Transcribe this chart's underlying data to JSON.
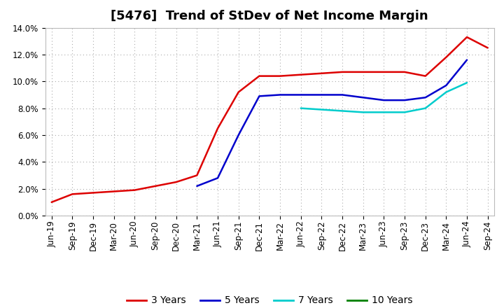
{
  "title": "[5476]  Trend of StDev of Net Income Margin",
  "background_color": "#ffffff",
  "plot_background_color": "#ffffff",
  "grid_color": "#aaaaaa",
  "ylim": [
    0,
    0.14
  ],
  "yticks": [
    0.0,
    0.02,
    0.04,
    0.06,
    0.08,
    0.1,
    0.12,
    0.14
  ],
  "x_labels": [
    "Jun-19",
    "Sep-19",
    "Dec-19",
    "Mar-20",
    "Jun-20",
    "Sep-20",
    "Dec-20",
    "Mar-21",
    "Jun-21",
    "Sep-21",
    "Dec-21",
    "Mar-22",
    "Jun-22",
    "Sep-22",
    "Dec-22",
    "Mar-23",
    "Jun-23",
    "Sep-23",
    "Dec-23",
    "Mar-24",
    "Jun-24",
    "Sep-24"
  ],
  "series": {
    "3 Years": {
      "color": "#dd0000",
      "linewidth": 1.8,
      "values": [
        0.01,
        0.016,
        0.017,
        0.018,
        0.019,
        0.022,
        0.025,
        0.03,
        0.065,
        0.092,
        0.104,
        0.104,
        0.105,
        0.106,
        0.107,
        0.107,
        0.107,
        0.107,
        0.104,
        0.118,
        0.133,
        0.125
      ]
    },
    "5 Years": {
      "color": "#0000cc",
      "linewidth": 1.8,
      "values": [
        null,
        null,
        null,
        null,
        null,
        null,
        null,
        0.022,
        0.028,
        0.06,
        0.089,
        0.09,
        0.09,
        0.09,
        0.09,
        0.088,
        0.086,
        0.086,
        0.088,
        0.097,
        0.116,
        null
      ]
    },
    "7 Years": {
      "color": "#00cccc",
      "linewidth": 1.8,
      "values": [
        null,
        null,
        null,
        null,
        null,
        null,
        null,
        null,
        null,
        null,
        null,
        null,
        0.08,
        0.079,
        0.078,
        0.077,
        0.077,
        0.077,
        0.08,
        0.092,
        0.099,
        null
      ]
    },
    "10 Years": {
      "color": "#008000",
      "linewidth": 1.8,
      "values": [
        null,
        null,
        null,
        null,
        null,
        null,
        null,
        null,
        null,
        null,
        null,
        null,
        null,
        null,
        null,
        null,
        null,
        null,
        null,
        null,
        null,
        null
      ]
    }
  },
  "legend_entries": [
    "3 Years",
    "5 Years",
    "7 Years",
    "10 Years"
  ],
  "legend_colors": [
    "#dd0000",
    "#0000cc",
    "#00cccc",
    "#008000"
  ],
  "title_fontsize": 13,
  "tick_fontsize": 8.5,
  "legend_fontsize": 10
}
